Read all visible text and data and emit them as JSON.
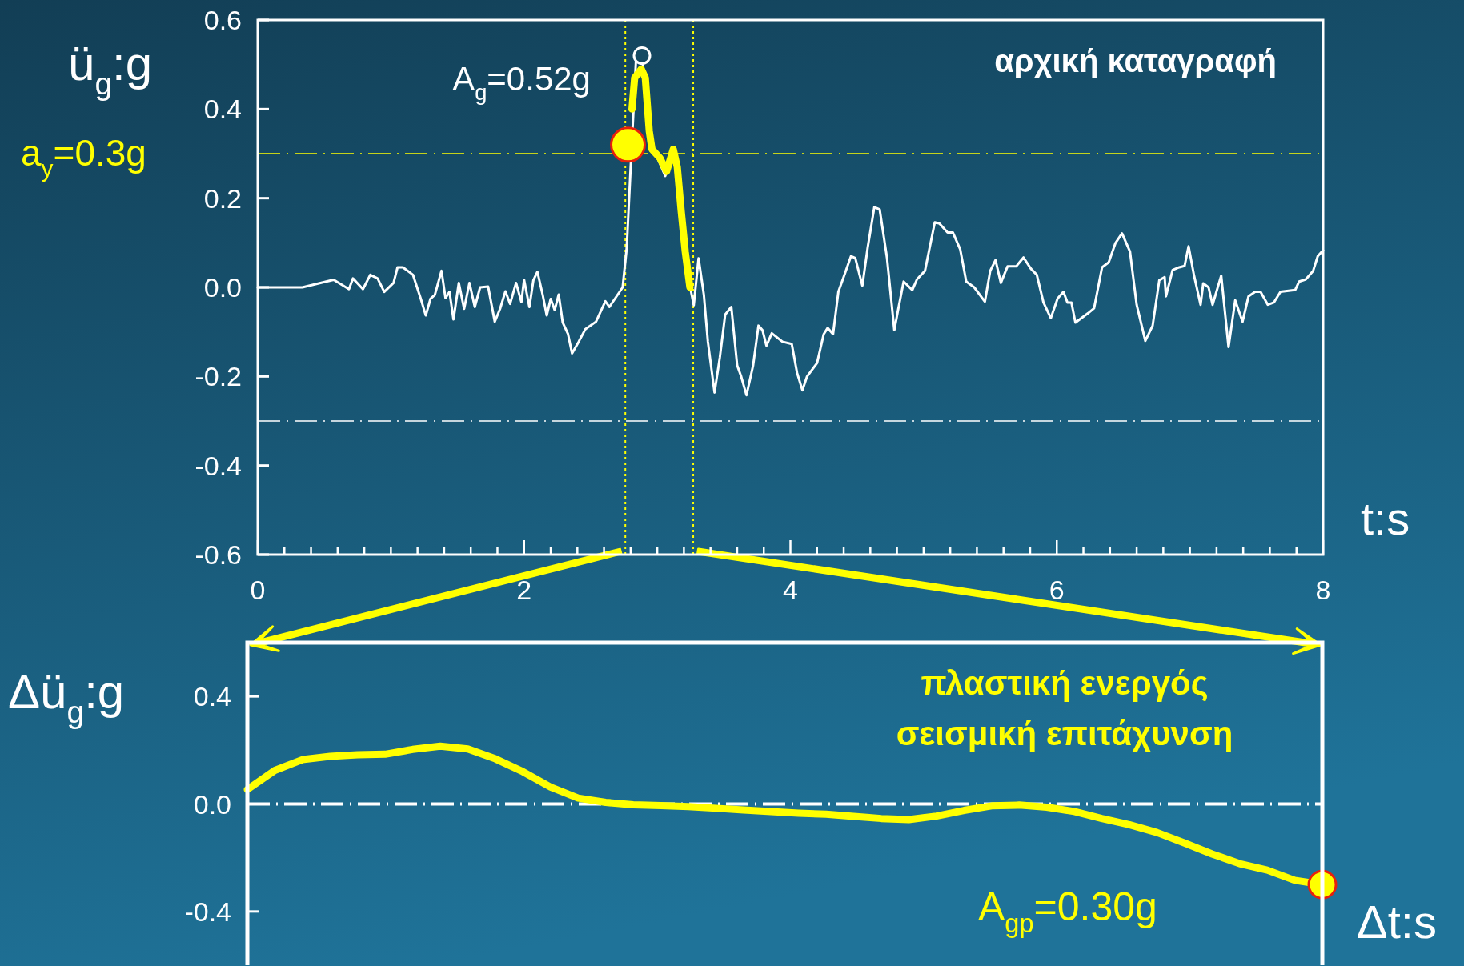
{
  "chart_data": [
    {
      "type": "line",
      "ylabel": "ü$_{g}$:g",
      "xlabel": "t:s",
      "xlim": [
        0,
        8
      ],
      "ylim": [
        -0.6,
        0.6
      ],
      "yticks": [
        -0.6,
        -0.4,
        -0.2,
        {
          "value": 0,
          "label": "0.0"
        },
        0.2,
        0.4,
        0.6
      ],
      "xticks": [
        0,
        {
          "value": 0.2,
          "label": null
        },
        {
          "value": 0.4,
          "label": null
        },
        {
          "value": 0.6,
          "label": null
        },
        {
          "value": 0.8,
          "label": null
        },
        {
          "value": 1,
          "label": null
        },
        {
          "value": 1.2,
          "label": null
        },
        {
          "value": 1.4,
          "label": null
        },
        {
          "value": 1.6,
          "label": null
        },
        {
          "value": 1.8,
          "label": null
        },
        2,
        {
          "value": 2.2,
          "label": null
        },
        {
          "value": 2.4,
          "label": null
        },
        {
          "value": 2.6,
          "label": null
        },
        {
          "value": 2.8,
          "label": null
        },
        {
          "value": 3,
          "label": null
        },
        {
          "value": 3.2,
          "label": null
        },
        {
          "value": 3.4,
          "label": null
        },
        {
          "value": 3.6,
          "label": null
        },
        {
          "value": 3.8,
          "label": null
        },
        4,
        {
          "value": 4.2,
          "label": null
        },
        {
          "value": 4.4,
          "label": null
        },
        {
          "value": 4.6,
          "label": null
        },
        {
          "value": 4.8,
          "label": null
        },
        {
          "value": 5,
          "label": null
        },
        {
          "value": 5.2,
          "label": null
        },
        {
          "value": 5.4,
          "label": null
        },
        {
          "value": 5.6,
          "label": null
        },
        {
          "value": 5.8,
          "label": null
        },
        6,
        {
          "value": 6.2,
          "label": null
        },
        {
          "value": 6.4,
          "label": null
        },
        {
          "value": 6.6,
          "label": null
        },
        {
          "value": 6.8,
          "label": null
        },
        {
          "value": 7,
          "label": null
        },
        {
          "value": 7.2,
          "label": null
        },
        {
          "value": 7.4,
          "label": null
        },
        {
          "value": 7.6,
          "label": null
        },
        {
          "value": 7.8,
          "label": null
        },
        8
      ],
      "series": [
        {
          "color": "#ffffff",
          "x": [
            0,
            0.31,
            0.335,
            0.57,
            0.685,
            0.715,
            0.79,
            0.845,
            0.9,
            0.95,
            1.02,
            1.05,
            1.09,
            1.166,
            1.225,
            1.262,
            1.297,
            1.33,
            1.38,
            1.41,
            1.44,
            1.47,
            1.51,
            1.55,
            1.59,
            1.63,
            1.67,
            1.73,
            1.78,
            1.82,
            1.86,
            1.895,
            1.94,
            1.98,
            2.0,
            2.04,
            2.07,
            2.1,
            2.14,
            2.17,
            2.2,
            2.23,
            2.26,
            2.29,
            2.33,
            2.36,
            2.41,
            2.46,
            2.54,
            2.61,
            2.64,
            2.74,
            2.77,
            2.84,
            2.885,
            2.93,
            2.96,
            3.06,
            3.12,
            3.16,
            3.21,
            3.25,
            3.274,
            3.31,
            3.35,
            3.38,
            3.43,
            3.47,
            3.51,
            3.556,
            3.6,
            3.63,
            3.67,
            3.72,
            3.76,
            3.79,
            3.82,
            3.86,
            3.94,
            4.01,
            4.05,
            4.09,
            4.125,
            4.2,
            4.25,
            4.28,
            4.32,
            4.36,
            4.41,
            4.455,
            4.487,
            4.54,
            4.58,
            4.63,
            4.67,
            4.725,
            4.78,
            4.81,
            4.85,
            4.915,
            4.95,
            5.01,
            5.084,
            5.12,
            5.18,
            5.22,
            5.275,
            5.32,
            5.38,
            5.46,
            5.5,
            5.54,
            5.58,
            5.63,
            5.695,
            5.75,
            5.805,
            5.85,
            5.9,
            5.955,
            6.006,
            6.05,
            6.08,
            6.11,
            6.14,
            6.235,
            6.28,
            6.34,
            6.39,
            6.44,
            6.49,
            6.55,
            6.6,
            6.665,
            6.72,
            6.77,
            6.81,
            6.82,
            6.87,
            6.92,
            6.96,
            6.99,
            7.03,
            7.08,
            7.1,
            7.14,
            7.17,
            7.235,
            7.29,
            7.34,
            7.395,
            7.44,
            7.49,
            7.53,
            7.585,
            7.63,
            7.68,
            7.79,
            7.82,
            7.87,
            7.925,
            7.96,
            8.0
          ],
          "values": [
            0,
            0,
            0,
            0.017,
            -0.004,
            0.02,
            -0.004,
            0.028,
            0.02,
            -0.01,
            0.01,
            0.045,
            0.045,
            0.028,
            -0.026,
            -0.063,
            -0.026,
            -0.017,
            0.037,
            -0.024,
            -0.01,
            -0.072,
            0.01,
            -0.048,
            0.01,
            -0.044,
            0,
            0.002,
            -0.077,
            -0.048,
            -0.009,
            -0.037,
            0.01,
            -0.033,
            0.017,
            -0.044,
            0.016,
            0.035,
            -0.017,
            -0.063,
            -0.026,
            -0.051,
            -0.016,
            -0.079,
            -0.105,
            -0.148,
            -0.122,
            -0.094,
            -0.077,
            -0.031,
            -0.044,
            0,
            0.087,
            0.51,
            0.52,
            0.38,
            0.32,
            0.25,
            0.31,
            0.21,
            0.08,
            -0.004,
            -0.04,
            0.065,
            -0.017,
            -0.122,
            -0.236,
            -0.157,
            -0.061,
            -0.044,
            -0.175,
            -0.2,
            -0.242,
            -0.175,
            -0.086,
            -0.096,
            -0.131,
            -0.103,
            -0.122,
            -0.127,
            -0.192,
            -0.231,
            -0.2,
            -0.17,
            -0.105,
            -0.091,
            -0.105,
            -0.01,
            0.032,
            0.07,
            0.066,
            0.004,
            0.089,
            0.18,
            0.175,
            0.066,
            -0.096,
            -0.048,
            0.013,
            -0.006,
            0.018,
            0.037,
            0.146,
            0.143,
            0.123,
            0.123,
            0.085,
            0.013,
            0,
            -0.032,
            0.037,
            0.061,
            0.01,
            0.047,
            0.047,
            0.067,
            0.042,
            0.028,
            -0.034,
            -0.069,
            -0.025,
            -0.01,
            -0.034,
            -0.034,
            -0.079,
            -0.058,
            -0.047,
            0.045,
            0.056,
            0.099,
            0.121,
            0.08,
            -0.039,
            -0.12,
            -0.086,
            0.016,
            0.023,
            -0.02,
            0.039,
            0.045,
            0.048,
            0.092,
            0.028,
            -0.039,
            0.009,
            0,
            -0.039,
            0.026,
            -0.134,
            -0.029,
            -0.077,
            -0.02,
            -0.01,
            -0.01,
            -0.039,
            -0.034,
            -0.01,
            -0.006,
            0.013,
            0.018,
            0.037,
            0.07,
            0.083
          ]
        },
        {
          "color": "#ffff00",
          "x": [
            2.81,
            2.83,
            2.88,
            2.91,
            2.94,
            2.96,
            3.02,
            3.07,
            3.12,
            3.15,
            3.18,
            3.21,
            3.245
          ],
          "values": [
            0.4,
            0.47,
            0.49,
            0.47,
            0.35,
            0.31,
            0.29,
            0.26,
            0.31,
            0.27,
            0.17,
            0.08,
            0
          ]
        },
        {
          "type": "scatter",
          "marker": "circle",
          "color": "#ffff00",
          "x": [
            2.78
          ],
          "values": [
            0.32
          ]
        },
        {
          "type": "scatter",
          "marker": "circle",
          "color": "#ffffff",
          "x": [
            2.885
          ],
          "values": [
            0.52
          ]
        }
      ],
      "ref_lines": [
        {
          "axis": "y",
          "value": 0.3,
          "label": "a$_{y}$=0.3g",
          "color": "#ffff00",
          "line_style": "dashed"
        },
        {
          "axis": "y",
          "value": -0.3,
          "color": "#ffffff",
          "line_style": "dashed"
        },
        {
          "axis": "x",
          "value": 2.76,
          "color": "#ffff00",
          "line_style": "dotted"
        },
        {
          "axis": "x",
          "value": 3.27,
          "color": "#ffff00",
          "line_style": "dotted"
        }
      ],
      "annotations": [
        "αρχική καταγραφή",
        {
          "text": "A$_{g}$=0.52g",
          "x": 2.885,
          "y": 0.52
        }
      ]
    },
    {
      "type": "line",
      "ylabel": "Δü$_{g}$:g",
      "xlabel": "Δt:s",
      "ylim": [
        -0.6,
        0.6
      ],
      "yticks": [
        -0.4,
        {
          "value": 0,
          "label": "0.0"
        },
        0.4
      ],
      "categories": [
        null,
        null,
        null,
        null,
        null,
        null,
        null,
        null,
        null,
        null,
        null,
        null,
        null,
        null,
        null,
        null,
        null,
        null,
        null,
        null,
        null,
        null,
        null,
        null,
        null,
        null,
        null,
        null,
        null,
        null,
        null,
        null,
        null,
        null,
        null,
        null,
        null,
        null,
        null,
        null
      ],
      "series": [
        {
          "color": "#ffff00",
          "values": [
            0.054,
            0.125,
            0.165,
            0.177,
            0.183,
            0.185,
            0.203,
            0.215,
            0.205,
            0.168,
            0.12,
            0.063,
            0.022,
            0.006,
            -0.003,
            -0.006,
            -0.01,
            -0.016,
            -0.022,
            -0.028,
            -0.034,
            -0.038,
            -0.046,
            -0.054,
            -0.058,
            -0.045,
            -0.024,
            -0.007,
            -0.004,
            -0.012,
            -0.028,
            -0.054,
            -0.077,
            -0.106,
            -0.145,
            -0.186,
            -0.222,
            -0.246,
            -0.284,
            -0.3
          ]
        },
        {
          "type": "scatter",
          "marker": "circle",
          "color": "#ffff00",
          "values": [
            null,
            null,
            null,
            null,
            null,
            null,
            null,
            null,
            null,
            null,
            null,
            null,
            null,
            null,
            null,
            null,
            null,
            null,
            null,
            null,
            null,
            null,
            null,
            null,
            null,
            null,
            null,
            null,
            null,
            null,
            null,
            null,
            null,
            null,
            null,
            null,
            null,
            null,
            null,
            -0.3
          ]
        }
      ],
      "ref_lines": [
        {
          "axis": "y",
          "value": 0,
          "color": "#ffffff",
          "line_style": "dashed"
        }
      ],
      "annotations": [
        "πλαστική ενεργός\nσεισμική επιτάχυνση",
        "A$_{gp}$=0.30g"
      ]
    }
  ]
}
